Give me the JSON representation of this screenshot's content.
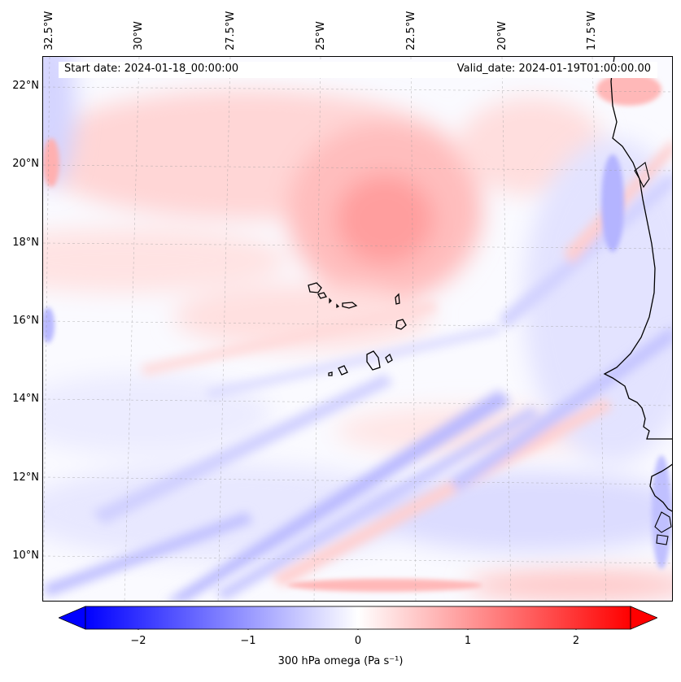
{
  "map": {
    "start_date": "Start date: 2024-01-18_00:00:00",
    "valid_date": "Valid_date: 2024-01-19T01:00:00.00",
    "longitude_labels": [
      "32.5°W",
      "30°W",
      "27.5°W",
      "25°W",
      "22.5°W",
      "20°W",
      "17.5°W"
    ],
    "latitude_labels": [
      "22°N",
      "20°N",
      "18°N",
      "16°N",
      "14°N",
      "12°N",
      "10°N"
    ],
    "gridlines": true,
    "extent": {
      "lon_min": -32.6,
      "lon_max": -15.3,
      "lat_min": 8.9,
      "lat_max": 22.8
    }
  },
  "colorbar": {
    "title": "300 hPa omega (Pa s⁻¹)",
    "ticks": [
      "−2",
      "−1",
      "0",
      "1",
      "2"
    ],
    "range": [
      -2.5,
      2.5
    ],
    "extend": "both",
    "colormap": "bwr",
    "colors": {
      "negative": "#0000ff",
      "zero": "#ffffff",
      "positive": "#ff0000"
    }
  }
}
